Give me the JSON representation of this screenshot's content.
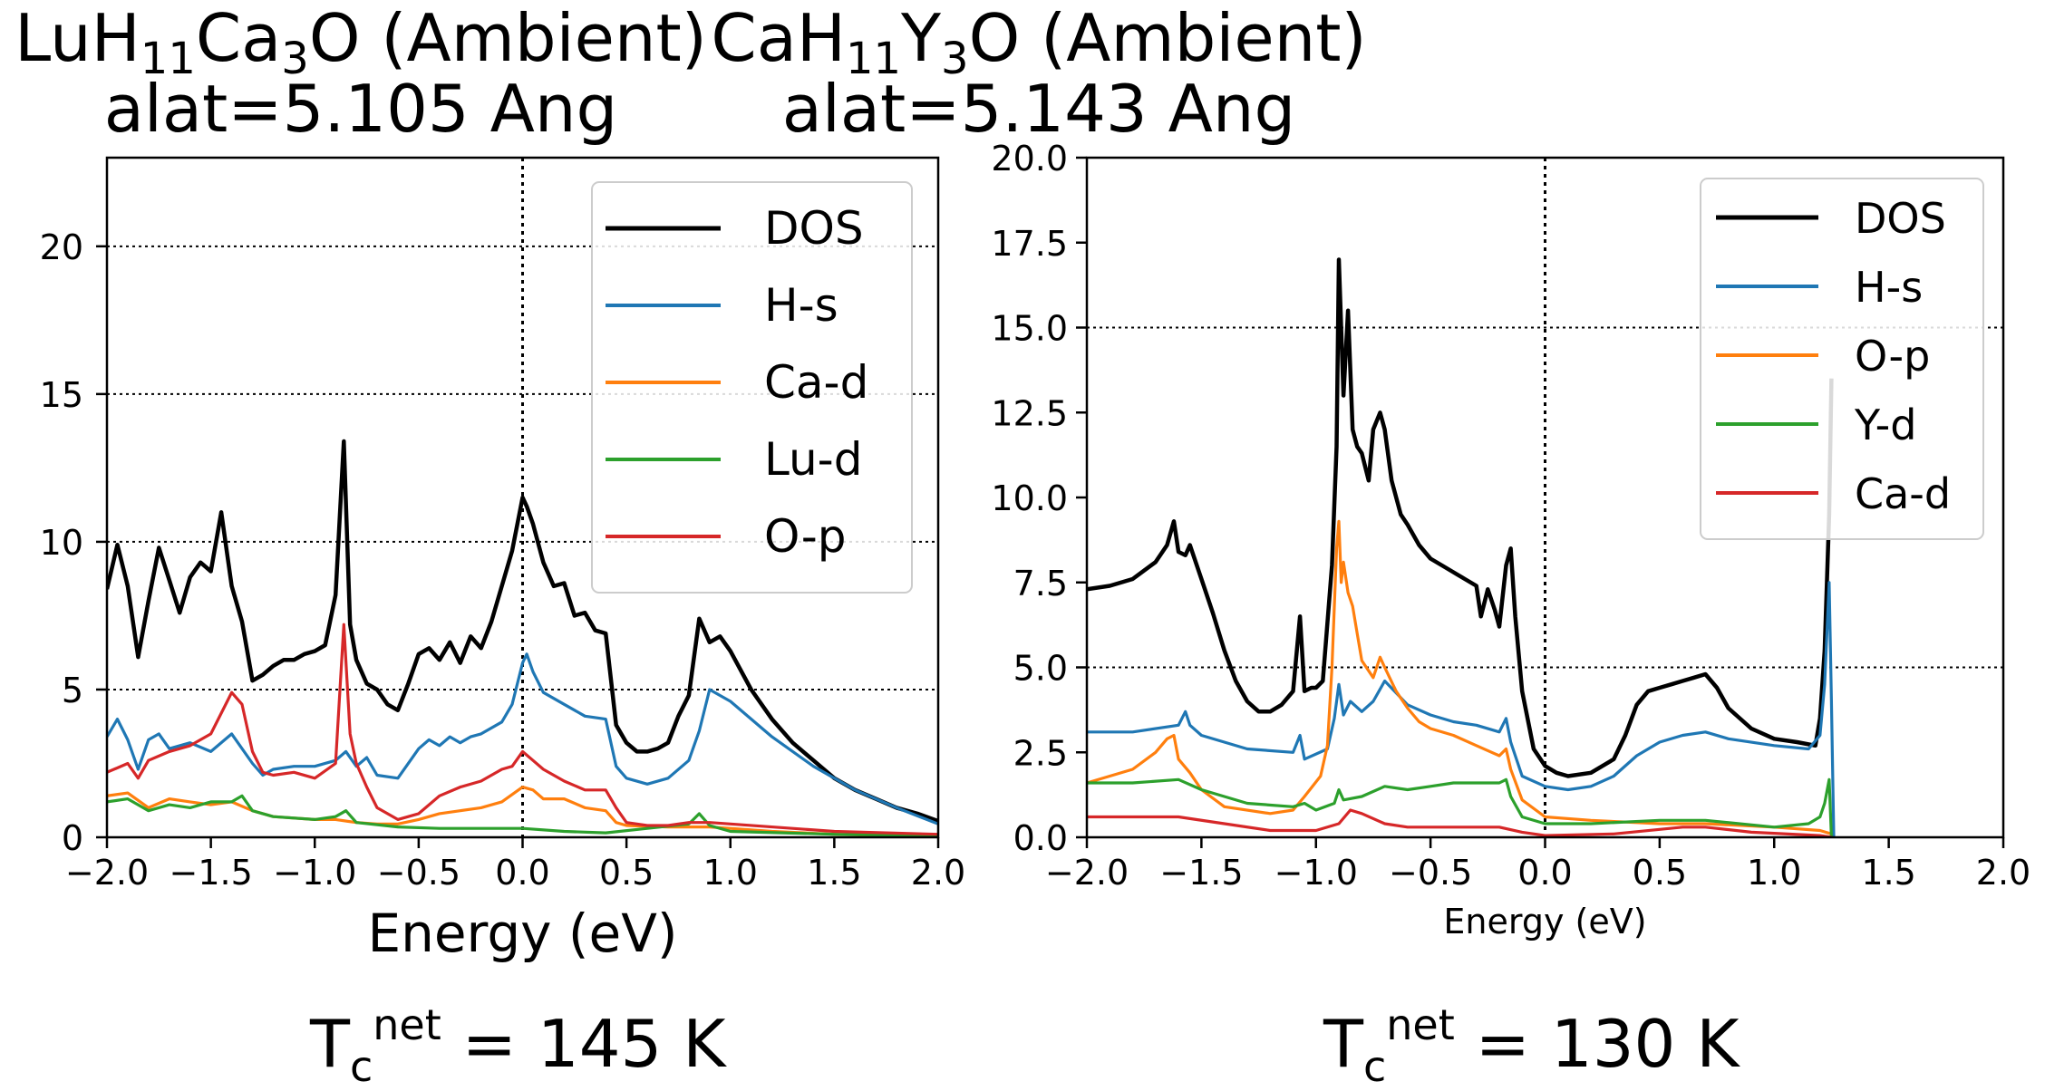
{
  "panels": [
    {
      "title_formula": {
        "p1": "LuH",
        "s1": "11",
        "p2": "Ca",
        "s2": "3",
        "p3": "O (Ambient)"
      },
      "title_line2": "alat=5.105 Ang",
      "tc": {
        "T": "T",
        "sub": "c",
        "sup": "net",
        "value": " = 145 K"
      }
    },
    {
      "title_formula": {
        "p1": "CaH",
        "s1": "11",
        "p2": "Y",
        "s2": "3",
        "p3": "O (Ambient)"
      },
      "title_line2": "alat=5.143 Ang",
      "tc": {
        "T": "T",
        "sub": "c",
        "sup": "net",
        "value": " = 130 K"
      }
    }
  ],
  "colors": {
    "DOS": "#000000",
    "blue": "#1f77b4",
    "orange": "#ff7f0e",
    "green": "#2ca02c",
    "red": "#d62728"
  },
  "chart_data": [
    {
      "type": "line",
      "xlabel": "Energy (eV)",
      "xlim": [
        -2.0,
        2.0
      ],
      "ylim": [
        0,
        23
      ],
      "xticks": [
        -2.0,
        -1.5,
        -1.0,
        -0.5,
        0.0,
        0.5,
        1.0,
        1.5,
        2.0
      ],
      "xtick_labels": [
        "−2.0",
        "−1.5",
        "−1.0",
        "−0.5",
        "0.0",
        "0.5",
        "1.0",
        "1.5",
        "2.0"
      ],
      "yticks": [
        0,
        5,
        10,
        15,
        20
      ],
      "ytick_labels": [
        "0",
        "5",
        "10",
        "15",
        "20"
      ],
      "grid_y": [
        5,
        10,
        15,
        20
      ],
      "fermi_line_x": 0.0,
      "legend_position": "top-right",
      "series": [
        {
          "name": "DOS",
          "color": "DOS",
          "x": [
            -2.0,
            -1.95,
            -1.9,
            -1.85,
            -1.8,
            -1.75,
            -1.7,
            -1.65,
            -1.6,
            -1.55,
            -1.5,
            -1.45,
            -1.4,
            -1.35,
            -1.3,
            -1.25,
            -1.2,
            -1.15,
            -1.1,
            -1.05,
            -1.0,
            -0.95,
            -0.9,
            -0.86,
            -0.83,
            -0.8,
            -0.75,
            -0.7,
            -0.65,
            -0.6,
            -0.55,
            -0.5,
            -0.45,
            -0.4,
            -0.35,
            -0.3,
            -0.25,
            -0.2,
            -0.15,
            -0.1,
            -0.05,
            0.0,
            0.02,
            0.05,
            0.1,
            0.15,
            0.2,
            0.25,
            0.3,
            0.35,
            0.4,
            0.45,
            0.5,
            0.55,
            0.6,
            0.65,
            0.7,
            0.75,
            0.8,
            0.85,
            0.9,
            0.95,
            1.0,
            1.1,
            1.2,
            1.3,
            1.4,
            1.5,
            1.6,
            1.7,
            1.8,
            1.9,
            2.0
          ],
          "y": [
            8.4,
            9.9,
            8.5,
            6.1,
            8.0,
            9.8,
            8.7,
            7.6,
            8.8,
            9.3,
            9.0,
            11.0,
            8.5,
            7.3,
            5.3,
            5.5,
            5.8,
            6.0,
            6.0,
            6.2,
            6.3,
            6.5,
            8.2,
            13.4,
            7.2,
            6.0,
            5.2,
            5.0,
            4.5,
            4.3,
            5.2,
            6.2,
            6.4,
            6.0,
            6.6,
            5.9,
            6.8,
            6.4,
            7.3,
            8.5,
            9.7,
            11.5,
            11.2,
            10.6,
            9.3,
            8.5,
            8.6,
            7.5,
            7.6,
            7.0,
            6.9,
            3.8,
            3.2,
            2.9,
            2.9,
            3.0,
            3.2,
            4.1,
            4.8,
            7.4,
            6.6,
            6.8,
            6.3,
            5.0,
            4.0,
            3.2,
            2.6,
            2.0,
            1.6,
            1.3,
            1.0,
            0.8,
            0.55
          ]
        },
        {
          "name": "H-s",
          "color": "blue",
          "x": [
            -2.0,
            -1.95,
            -1.9,
            -1.85,
            -1.8,
            -1.75,
            -1.7,
            -1.6,
            -1.5,
            -1.4,
            -1.3,
            -1.25,
            -1.2,
            -1.1,
            -1.0,
            -0.9,
            -0.85,
            -0.8,
            -0.75,
            -0.7,
            -0.6,
            -0.5,
            -0.45,
            -0.4,
            -0.35,
            -0.3,
            -0.25,
            -0.2,
            -0.1,
            -0.05,
            0.0,
            0.02,
            0.05,
            0.1,
            0.2,
            0.3,
            0.4,
            0.45,
            0.5,
            0.6,
            0.7,
            0.8,
            0.85,
            0.9,
            1.0,
            1.2,
            1.4,
            1.6,
            1.8,
            2.0
          ],
          "y": [
            3.4,
            4.0,
            3.3,
            2.3,
            3.3,
            3.5,
            3.0,
            3.2,
            2.9,
            3.5,
            2.5,
            2.1,
            2.3,
            2.4,
            2.4,
            2.6,
            2.9,
            2.4,
            2.7,
            2.1,
            2.0,
            3.0,
            3.3,
            3.1,
            3.4,
            3.2,
            3.4,
            3.5,
            3.9,
            4.5,
            5.9,
            6.2,
            5.6,
            4.9,
            4.5,
            4.1,
            4.0,
            2.4,
            2.0,
            1.8,
            2.0,
            2.6,
            3.6,
            5.0,
            4.6,
            3.4,
            2.4,
            1.6,
            1.0,
            0.45
          ]
        },
        {
          "name": "Ca-d",
          "color": "orange",
          "x": [
            -2.0,
            -1.9,
            -1.8,
            -1.7,
            -1.6,
            -1.5,
            -1.4,
            -1.3,
            -1.2,
            -1.0,
            -0.9,
            -0.8,
            -0.7,
            -0.6,
            -0.5,
            -0.4,
            -0.3,
            -0.2,
            -0.1,
            0.0,
            0.05,
            0.1,
            0.2,
            0.3,
            0.4,
            0.45,
            0.5,
            0.7,
            0.9,
            1.0,
            1.2,
            1.5,
            1.8,
            2.0
          ],
          "y": [
            1.4,
            1.5,
            1.0,
            1.3,
            1.2,
            1.1,
            1.2,
            0.9,
            0.7,
            0.6,
            0.6,
            0.5,
            0.45,
            0.45,
            0.6,
            0.8,
            0.9,
            1.0,
            1.2,
            1.7,
            1.6,
            1.3,
            1.3,
            1.0,
            0.9,
            0.5,
            0.4,
            0.35,
            0.35,
            0.3,
            0.2,
            0.1,
            0.05,
            0.02
          ]
        },
        {
          "name": "Lu-d",
          "color": "green",
          "x": [
            -2.0,
            -1.9,
            -1.8,
            -1.7,
            -1.6,
            -1.5,
            -1.4,
            -1.35,
            -1.3,
            -1.2,
            -1.0,
            -0.9,
            -0.85,
            -0.8,
            -0.6,
            -0.4,
            -0.2,
            0.0,
            0.2,
            0.4,
            0.6,
            0.8,
            0.85,
            0.9,
            1.0,
            1.5,
            2.0
          ],
          "y": [
            1.2,
            1.3,
            0.9,
            1.1,
            1.0,
            1.2,
            1.2,
            1.4,
            0.9,
            0.7,
            0.6,
            0.7,
            0.9,
            0.5,
            0.35,
            0.3,
            0.3,
            0.3,
            0.2,
            0.15,
            0.3,
            0.45,
            0.8,
            0.4,
            0.2,
            0.1,
            0.05
          ]
        },
        {
          "name": "O-p",
          "color": "red",
          "x": [
            -2.0,
            -1.9,
            -1.85,
            -1.8,
            -1.7,
            -1.6,
            -1.5,
            -1.4,
            -1.35,
            -1.3,
            -1.25,
            -1.2,
            -1.1,
            -1.0,
            -0.9,
            -0.86,
            -0.83,
            -0.8,
            -0.75,
            -0.7,
            -0.6,
            -0.5,
            -0.4,
            -0.3,
            -0.2,
            -0.1,
            -0.05,
            0.0,
            0.05,
            0.1,
            0.2,
            0.3,
            0.4,
            0.45,
            0.5,
            0.6,
            0.7,
            0.8,
            0.9,
            1.0,
            1.5,
            2.0
          ],
          "y": [
            2.2,
            2.5,
            2.0,
            2.6,
            2.9,
            3.1,
            3.5,
            4.9,
            4.5,
            2.9,
            2.2,
            2.1,
            2.2,
            2.0,
            2.5,
            7.2,
            3.5,
            2.5,
            1.7,
            1.0,
            0.6,
            0.8,
            1.4,
            1.7,
            1.9,
            2.3,
            2.4,
            2.9,
            2.6,
            2.3,
            1.9,
            1.6,
            1.6,
            1.0,
            0.5,
            0.4,
            0.4,
            0.5,
            0.5,
            0.45,
            0.2,
            0.1
          ]
        }
      ]
    },
    {
      "type": "line",
      "xlabel": "Energy (eV)",
      "xlim": [
        -2.0,
        2.0
      ],
      "ylim": [
        0,
        20
      ],
      "xticks": [
        -2.0,
        -1.5,
        -1.0,
        -0.5,
        0.0,
        0.5,
        1.0,
        1.5,
        2.0
      ],
      "xtick_labels": [
        "−2.0",
        "−1.5",
        "−1.0",
        "−0.5",
        "0.0",
        "0.5",
        "1.0",
        "1.5",
        "2.0"
      ],
      "yticks": [
        0.0,
        2.5,
        5.0,
        7.5,
        10.0,
        12.5,
        15.0,
        17.5,
        20.0
      ],
      "ytick_labels": [
        "0.0",
        "2.5",
        "5.0",
        "7.5",
        "10.0",
        "12.5",
        "15.0",
        "17.5",
        "20.0"
      ],
      "grid_y": [
        5.0,
        15.0
      ],
      "fermi_line_x": 0.0,
      "legend_position": "top-right",
      "series": [
        {
          "name": "DOS",
          "color": "DOS",
          "x": [
            -2.0,
            -1.9,
            -1.8,
            -1.7,
            -1.65,
            -1.62,
            -1.6,
            -1.57,
            -1.55,
            -1.5,
            -1.45,
            -1.4,
            -1.35,
            -1.3,
            -1.25,
            -1.2,
            -1.15,
            -1.1,
            -1.07,
            -1.05,
            -1.02,
            -1.0,
            -0.97,
            -0.93,
            -0.91,
            -0.9,
            -0.88,
            -0.86,
            -0.84,
            -0.82,
            -0.8,
            -0.77,
            -0.75,
            -0.72,
            -0.7,
            -0.67,
            -0.63,
            -0.6,
            -0.55,
            -0.5,
            -0.45,
            -0.4,
            -0.35,
            -0.3,
            -0.28,
            -0.25,
            -0.22,
            -0.2,
            -0.17,
            -0.15,
            -0.13,
            -0.1,
            -0.05,
            0.0,
            0.05,
            0.1,
            0.2,
            0.3,
            0.35,
            0.4,
            0.45,
            0.5,
            0.55,
            0.6,
            0.65,
            0.7,
            0.75,
            0.8,
            0.9,
            1.0,
            1.1,
            1.18,
            1.2,
            1.22,
            1.24,
            1.25
          ],
          "y": [
            7.3,
            7.4,
            7.6,
            8.1,
            8.6,
            9.3,
            8.4,
            8.3,
            8.6,
            7.6,
            6.6,
            5.5,
            4.6,
            4.0,
            3.7,
            3.7,
            3.9,
            4.3,
            6.5,
            4.3,
            4.4,
            4.4,
            4.6,
            8.0,
            11.5,
            17.0,
            13.0,
            15.5,
            12.0,
            11.5,
            11.3,
            10.5,
            12.0,
            12.5,
            12.0,
            10.5,
            9.5,
            9.2,
            8.6,
            8.2,
            8.0,
            7.8,
            7.6,
            7.4,
            6.5,
            7.3,
            6.7,
            6.2,
            8.0,
            8.5,
            6.5,
            4.3,
            2.6,
            2.1,
            1.9,
            1.8,
            1.9,
            2.3,
            3.0,
            3.9,
            4.3,
            4.4,
            4.5,
            4.6,
            4.7,
            4.8,
            4.4,
            3.8,
            3.2,
            2.9,
            2.8,
            2.7,
            3.5,
            5.5,
            9.5,
            13.5
          ]
        },
        {
          "name": "H-s",
          "color": "blue",
          "x": [
            -2.0,
            -1.8,
            -1.6,
            -1.57,
            -1.55,
            -1.5,
            -1.3,
            -1.1,
            -1.07,
            -1.05,
            -0.95,
            -0.92,
            -0.9,
            -0.88,
            -0.85,
            -0.8,
            -0.75,
            -0.7,
            -0.6,
            -0.5,
            -0.4,
            -0.3,
            -0.2,
            -0.17,
            -0.15,
            -0.1,
            0.0,
            0.1,
            0.2,
            0.3,
            0.4,
            0.5,
            0.6,
            0.7,
            0.8,
            1.0,
            1.15,
            1.2,
            1.22,
            1.24,
            1.25,
            1.26
          ],
          "y": [
            3.1,
            3.1,
            3.3,
            3.7,
            3.3,
            3.0,
            2.6,
            2.5,
            3.0,
            2.3,
            2.6,
            3.5,
            4.5,
            3.6,
            4.0,
            3.7,
            4.0,
            4.6,
            3.9,
            3.6,
            3.4,
            3.3,
            3.1,
            3.5,
            2.8,
            1.8,
            1.5,
            1.4,
            1.5,
            1.8,
            2.4,
            2.8,
            3.0,
            3.1,
            2.9,
            2.7,
            2.6,
            3.0,
            4.5,
            7.5,
            4.0,
            0.0
          ]
        },
        {
          "name": "O-p",
          "color": "orange",
          "x": [
            -2.0,
            -1.8,
            -1.7,
            -1.65,
            -1.62,
            -1.6,
            -1.55,
            -1.5,
            -1.4,
            -1.2,
            -1.1,
            -1.05,
            -0.98,
            -0.95,
            -0.93,
            -0.91,
            -0.9,
            -0.89,
            -0.88,
            -0.86,
            -0.84,
            -0.82,
            -0.8,
            -0.75,
            -0.72,
            -0.7,
            -0.65,
            -0.6,
            -0.55,
            -0.5,
            -0.4,
            -0.3,
            -0.2,
            -0.17,
            -0.15,
            -0.1,
            0.0,
            0.2,
            0.5,
            0.7,
            1.0,
            1.2,
            1.25
          ],
          "y": [
            1.6,
            2.0,
            2.5,
            2.9,
            3.0,
            2.3,
            1.9,
            1.4,
            0.9,
            0.7,
            0.8,
            1.2,
            1.8,
            2.7,
            5.0,
            8.5,
            9.3,
            7.5,
            8.1,
            7.2,
            6.8,
            6.0,
            5.2,
            4.7,
            5.3,
            5.0,
            4.3,
            3.8,
            3.4,
            3.2,
            3.0,
            2.7,
            2.4,
            2.6,
            2.0,
            1.1,
            0.6,
            0.5,
            0.4,
            0.4,
            0.3,
            0.2,
            0.1
          ]
        },
        {
          "name": "Y-d",
          "color": "green",
          "x": [
            -2.0,
            -1.8,
            -1.6,
            -1.5,
            -1.3,
            -1.1,
            -1.05,
            -1.0,
            -0.92,
            -0.9,
            -0.88,
            -0.8,
            -0.7,
            -0.6,
            -0.5,
            -0.4,
            -0.3,
            -0.2,
            -0.17,
            -0.15,
            -0.1,
            0.0,
            0.2,
            0.5,
            0.7,
            1.0,
            1.15,
            1.2,
            1.22,
            1.24,
            1.25
          ],
          "y": [
            1.6,
            1.6,
            1.7,
            1.4,
            1.0,
            0.9,
            1.0,
            0.8,
            1.0,
            1.4,
            1.1,
            1.2,
            1.5,
            1.4,
            1.5,
            1.6,
            1.6,
            1.6,
            1.7,
            1.2,
            0.6,
            0.4,
            0.4,
            0.5,
            0.5,
            0.3,
            0.4,
            0.6,
            1.0,
            1.7,
            0.0
          ]
        },
        {
          "name": "Ca-d",
          "color": "red",
          "x": [
            -2.0,
            -1.8,
            -1.6,
            -1.4,
            -1.2,
            -1.0,
            -0.9,
            -0.85,
            -0.8,
            -0.7,
            -0.6,
            -0.4,
            -0.2,
            -0.1,
            0.0,
            0.3,
            0.6,
            0.7,
            0.9,
            1.2,
            1.25
          ],
          "y": [
            0.6,
            0.6,
            0.6,
            0.4,
            0.2,
            0.2,
            0.4,
            0.8,
            0.7,
            0.4,
            0.3,
            0.3,
            0.3,
            0.15,
            0.05,
            0.1,
            0.3,
            0.3,
            0.15,
            0.05,
            0.0
          ]
        }
      ]
    }
  ]
}
